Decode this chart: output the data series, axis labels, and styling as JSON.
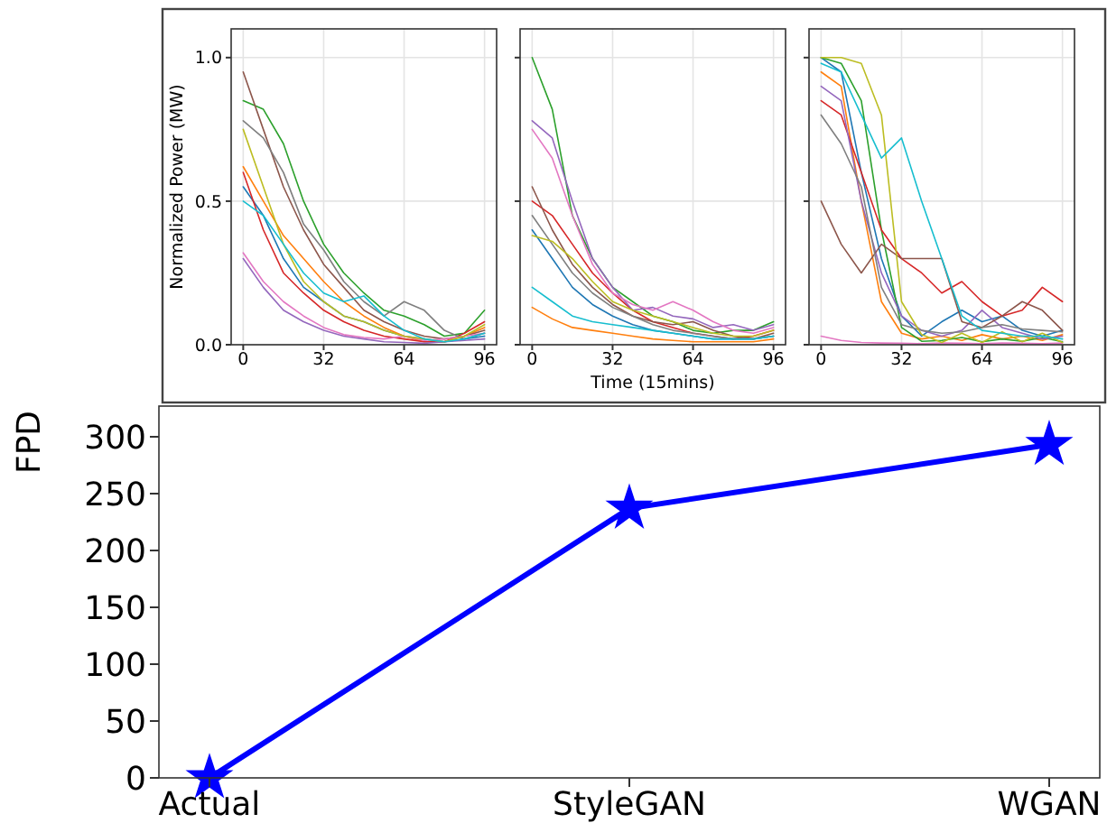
{
  "chart_data": [
    {
      "type": "line",
      "ylabel": "Normalized Power (MW)",
      "x": [
        0,
        8,
        16,
        24,
        32,
        40,
        48,
        56,
        64,
        72,
        80,
        88,
        96
      ],
      "xlim": [
        -4.8,
        100.8
      ],
      "ylim": [
        0,
        1.1
      ],
      "xticks": [
        0,
        32,
        64,
        96
      ],
      "yticks": [
        {
          "value": 0,
          "label": "0.0"
        },
        {
          "value": 0.5,
          "label": "0.5"
        },
        {
          "value": 1,
          "label": "1.0"
        }
      ],
      "grid": true,
      "marker": "none",
      "line_style": "solid",
      "series": [
        {
          "color": "#1f77b4",
          "values": [
            0.55,
            0.45,
            0.3,
            0.2,
            0.15,
            0.1,
            0.08,
            0.05,
            0.03,
            0.02,
            0.01,
            0.02,
            0.03
          ]
        },
        {
          "color": "#ff7f0e",
          "values": [
            0.62,
            0.5,
            0.38,
            0.3,
            0.22,
            0.15,
            0.1,
            0.06,
            0.03,
            0.01,
            0.01,
            0.03,
            0.06
          ]
        },
        {
          "color": "#2ca02c",
          "values": [
            0.85,
            0.82,
            0.7,
            0.5,
            0.35,
            0.25,
            0.18,
            0.12,
            0.1,
            0.07,
            0.03,
            0.04,
            0.12
          ]
        },
        {
          "color": "#d62728",
          "values": [
            0.6,
            0.4,
            0.25,
            0.18,
            0.12,
            0.08,
            0.05,
            0.03,
            0.02,
            0.01,
            0.01,
            0.04,
            0.08
          ]
        },
        {
          "color": "#9467bd",
          "values": [
            0.3,
            0.2,
            0.12,
            0.08,
            0.05,
            0.03,
            0.02,
            0.01,
            0.008,
            0.005,
            0.01,
            0.015,
            0.02
          ]
        },
        {
          "color": "#8c564b",
          "values": [
            0.95,
            0.75,
            0.55,
            0.4,
            0.28,
            0.2,
            0.12,
            0.08,
            0.05,
            0.03,
            0.02,
            0.03,
            0.05
          ]
        },
        {
          "color": "#e377c2",
          "values": [
            0.32,
            0.22,
            0.15,
            0.1,
            0.06,
            0.035,
            0.025,
            0.02,
            0.03,
            0.015,
            0.02,
            0.03,
            0.04
          ]
        },
        {
          "color": "#7f7f7f",
          "values": [
            0.78,
            0.72,
            0.6,
            0.42,
            0.33,
            0.22,
            0.15,
            0.1,
            0.15,
            0.12,
            0.05,
            0.02,
            0.04
          ]
        },
        {
          "color": "#bcbd22",
          "values": [
            0.75,
            0.55,
            0.35,
            0.22,
            0.15,
            0.1,
            0.08,
            0.05,
            0.03,
            0.02,
            0.01,
            0.03,
            0.07
          ]
        },
        {
          "color": "#17becf",
          "values": [
            0.5,
            0.45,
            0.35,
            0.25,
            0.18,
            0.15,
            0.17,
            0.1,
            0.05,
            0.02,
            0.01,
            0.02,
            0.04
          ]
        }
      ]
    },
    {
      "type": "line",
      "xlabel": "Time (15mins)",
      "x": [
        0,
        8,
        16,
        24,
        32,
        40,
        48,
        56,
        64,
        72,
        80,
        88,
        96
      ],
      "xlim": [
        -4.8,
        100.8
      ],
      "ylim": [
        0,
        1.1
      ],
      "xticks": [
        0,
        32,
        64,
        96
      ],
      "yticks": [
        {
          "value": 0,
          "label": null
        },
        {
          "value": 0.5,
          "label": null
        },
        {
          "value": 1,
          "label": null
        }
      ],
      "tick_labels": "x",
      "grid": true,
      "marker": "none",
      "line_style": "solid",
      "series": [
        {
          "color": "#1f77b4",
          "values": [
            0.4,
            0.3,
            0.2,
            0.14,
            0.1,
            0.07,
            0.05,
            0.04,
            0.03,
            0.02,
            0.02,
            0.02,
            0.03
          ]
        },
        {
          "color": "#ff7f0e",
          "values": [
            0.13,
            0.09,
            0.06,
            0.05,
            0.04,
            0.03,
            0.02,
            0.015,
            0.01,
            0.01,
            0.01,
            0.01,
            0.02
          ]
        },
        {
          "color": "#2ca02c",
          "values": [
            1.0,
            0.82,
            0.45,
            0.3,
            0.2,
            0.15,
            0.1,
            0.08,
            0.05,
            0.04,
            0.05,
            0.05,
            0.08
          ]
        },
        {
          "color": "#d62728",
          "values": [
            0.5,
            0.45,
            0.35,
            0.25,
            0.18,
            0.12,
            0.08,
            0.06,
            0.04,
            0.03,
            0.02,
            0.03,
            0.05
          ]
        },
        {
          "color": "#9467bd",
          "values": [
            0.78,
            0.72,
            0.5,
            0.3,
            0.2,
            0.12,
            0.13,
            0.1,
            0.09,
            0.06,
            0.07,
            0.05,
            0.07
          ]
        },
        {
          "color": "#8c564b",
          "values": [
            0.55,
            0.4,
            0.28,
            0.2,
            0.14,
            0.1,
            0.08,
            0.07,
            0.08,
            0.05,
            0.03,
            0.02,
            0.04
          ]
        },
        {
          "color": "#e377c2",
          "values": [
            0.75,
            0.65,
            0.45,
            0.28,
            0.18,
            0.14,
            0.12,
            0.15,
            0.12,
            0.08,
            0.05,
            0.04,
            0.06
          ]
        },
        {
          "color": "#7f7f7f",
          "values": [
            0.45,
            0.35,
            0.25,
            0.18,
            0.13,
            0.1,
            0.07,
            0.05,
            0.04,
            0.03,
            0.02,
            0.02,
            0.03
          ]
        },
        {
          "color": "#bcbd22",
          "values": [
            0.38,
            0.36,
            0.3,
            0.22,
            0.15,
            0.12,
            0.1,
            0.08,
            0.06,
            0.04,
            0.03,
            0.03,
            0.05
          ]
        },
        {
          "color": "#17becf",
          "values": [
            0.2,
            0.15,
            0.1,
            0.08,
            0.07,
            0.06,
            0.05,
            0.04,
            0.03,
            0.02,
            0.02,
            0.02,
            0.03
          ]
        }
      ]
    },
    {
      "type": "line",
      "x": [
        0,
        8,
        16,
        24,
        32,
        40,
        48,
        56,
        64,
        72,
        80,
        88,
        96
      ],
      "xlim": [
        -4.8,
        100.8
      ],
      "ylim": [
        0,
        1.1
      ],
      "xticks": [
        0,
        32,
        64,
        96
      ],
      "yticks": [
        {
          "value": 0,
          "label": null
        },
        {
          "value": 0.5,
          "label": null
        },
        {
          "value": 1,
          "label": null
        }
      ],
      "tick_labels": "x",
      "grid": true,
      "marker": "none",
      "line_style": "solid",
      "series": [
        {
          "color": "#1f77b4",
          "values": [
            1.0,
            0.95,
            0.6,
            0.3,
            0.1,
            0.03,
            0.08,
            0.12,
            0.08,
            0.1,
            0.05,
            0.03,
            0.05
          ]
        },
        {
          "color": "#ff7f0e",
          "values": [
            0.95,
            0.9,
            0.5,
            0.15,
            0.04,
            0.02,
            0.03,
            0.015,
            0.035,
            0.02,
            0.03,
            0.015,
            0.035
          ]
        },
        {
          "color": "#2ca02c",
          "values": [
            1.0,
            0.98,
            0.85,
            0.4,
            0.06,
            0.012,
            0.015,
            0.025,
            0.01,
            0.02,
            0.012,
            0.025,
            0.01
          ]
        },
        {
          "color": "#d62728",
          "values": [
            0.85,
            0.8,
            0.6,
            0.4,
            0.3,
            0.25,
            0.18,
            0.22,
            0.15,
            0.1,
            0.12,
            0.2,
            0.15
          ]
        },
        {
          "color": "#9467bd",
          "values": [
            0.9,
            0.85,
            0.5,
            0.25,
            0.1,
            0.05,
            0.03,
            0.05,
            0.12,
            0.06,
            0.04,
            0.02,
            0.03
          ]
        },
        {
          "color": "#8c564b",
          "values": [
            0.5,
            0.35,
            0.25,
            0.35,
            0.3,
            0.3,
            0.3,
            0.08,
            0.06,
            0.1,
            0.15,
            0.12,
            0.05
          ]
        },
        {
          "color": "#e377c2",
          "values": [
            0.03,
            0.015,
            0.008,
            0.006,
            0.005,
            0.004,
            0.006,
            0.005,
            0.004,
            0.006,
            0.005,
            0.004,
            0.006
          ]
        },
        {
          "color": "#7f7f7f",
          "values": [
            0.8,
            0.7,
            0.55,
            0.2,
            0.07,
            0.05,
            0.04,
            0.045,
            0.06,
            0.07,
            0.055,
            0.05,
            0.045
          ]
        },
        {
          "color": "#bcbd22",
          "values": [
            1.0,
            1.0,
            0.98,
            0.8,
            0.15,
            0.035,
            0.008,
            0.04,
            0.008,
            0.045,
            0.01,
            0.04,
            0.008
          ]
        },
        {
          "color": "#17becf",
          "values": [
            0.98,
            0.95,
            0.8,
            0.65,
            0.72,
            0.5,
            0.3,
            0.1,
            0.05,
            0.04,
            0.03,
            0.03,
            0.02
          ]
        }
      ]
    },
    {
      "type": "line",
      "ylabel": "FPD",
      "categories": [
        "Actual",
        "StyleGAN",
        "WGAN"
      ],
      "ylim": [
        0,
        327
      ],
      "yticks": [
        0,
        50,
        100,
        150,
        200,
        250,
        300
      ],
      "marker": "star",
      "line_style": "solid",
      "series": [
        {
          "color": "#0000ff",
          "values": [
            0,
            237,
            293
          ]
        }
      ]
    }
  ]
}
